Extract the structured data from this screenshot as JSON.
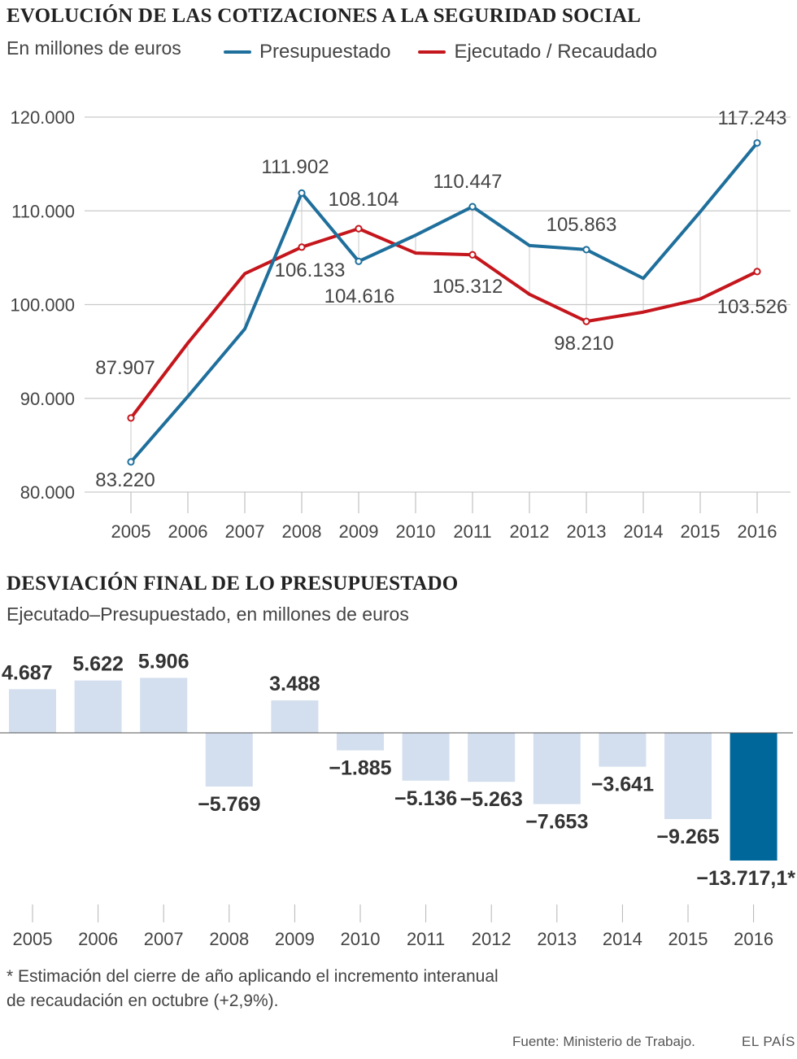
{
  "chart_data": [
    {
      "type": "line",
      "title": "EVOLUCIÓN DE LAS COTIZACIONES A LA SEGURIDAD SOCIAL",
      "subtitle": "En millones de euros",
      "x": [
        "2005",
        "2006",
        "2007",
        "2008",
        "2009",
        "2010",
        "2011",
        "2012",
        "2013",
        "2014",
        "2015",
        "2016"
      ],
      "yticks": [
        "80.000",
        "90.000",
        "100.000",
        "110.000",
        "120.000"
      ],
      "ylim": [
        80000,
        120000
      ],
      "grid": true,
      "legend": "top",
      "series": [
        {
          "name": "Presupuestado",
          "color": "#1f6f9c",
          "values": [
            83220,
            90200,
            97400,
            111902,
            104616,
            107400,
            110447,
            106300,
            105863,
            102800,
            109900,
            117243
          ],
          "labels": {
            "0": "83.220",
            "3": "111.902",
            "4": "104.616",
            "6": "110.447",
            "8": "105.863",
            "11": "117.243"
          }
        },
        {
          "name": "Ejecutado / Recaudado",
          "color": "#c4161c",
          "values": [
            87907,
            95900,
            103300,
            106133,
            108104,
            105500,
            105312,
            101100,
            98210,
            99200,
            100600,
            103526
          ],
          "labels": {
            "0": "87.907",
            "3": "106.133",
            "4": "108.104",
            "6": "105.312",
            "8": "98.210",
            "11": "103.526"
          }
        }
      ]
    },
    {
      "type": "bar",
      "title": "DESVIACIÓN FINAL DE LO PRESUPUESTADO",
      "subtitle": "Ejecutado–Presupuestado, en millones de euros",
      "categories": [
        "2005",
        "2006",
        "2007",
        "2008",
        "2009",
        "2010",
        "2011",
        "2012",
        "2013",
        "2014",
        "2015",
        "2016"
      ],
      "values": [
        4687,
        5622,
        5906,
        -5769,
        3488,
        -1885,
        -5136,
        -5263,
        -7653,
        -3641,
        -9265,
        -13717.1
      ],
      "labels": [
        "4.687",
        "5.622",
        "5.906",
        "−5.769",
        "3.488",
        "−1.885",
        "−5.136",
        "−5.263",
        "−7.653",
        "−3.641",
        "−9.265",
        "−13.717,1*"
      ],
      "colors": {
        "default": "#d3dfee",
        "highlight": "#00679a"
      },
      "highlight_index": 11
    }
  ],
  "footnote_line1": "* Estimación del cierre de año aplicando el incremento interanual",
  "footnote_line2": "de recaudación en octubre (+2,9%).",
  "source": "Fuente: Ministerio de Trabajo.",
  "brand": "EL PAÍS"
}
